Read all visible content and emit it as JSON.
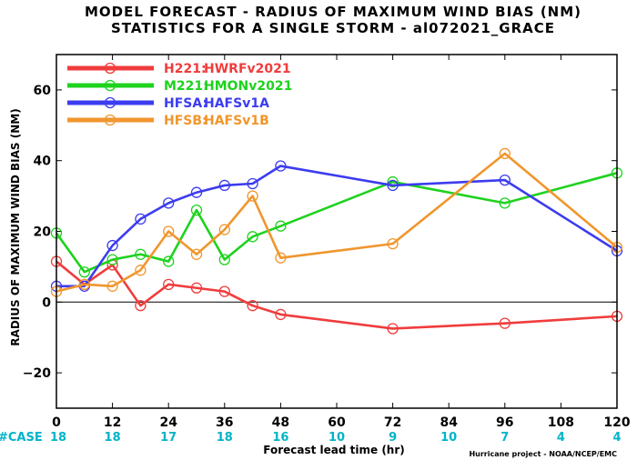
{
  "chart_data": {
    "type": "line",
    "title": "MODEL FORECAST - RADIUS OF MAXIMUM WIND BIAS (NM)",
    "subtitle": "STATISTICS FOR A SINGLE STORM - al072021_GRACE",
    "xlabel": "Forecast lead time (hr)",
    "ylabel": "RADIUS OF MAXIMUM WIND BIAS (NM)",
    "xlim": [
      0,
      120
    ],
    "ylim": [
      -30,
      70
    ],
    "xticks": [
      0,
      12,
      24,
      36,
      48,
      60,
      72,
      84,
      96,
      108,
      120
    ],
    "yticks": [
      -20,
      0,
      20,
      40,
      60
    ],
    "zero_line": true,
    "legend_position": "top-left",
    "case_label": "#CASE",
    "case_x": [
      0,
      12,
      24,
      36,
      48,
      60,
      72,
      84,
      96,
      108,
      120
    ],
    "case_counts": [
      "18",
      "18",
      "17",
      "18",
      "16",
      "10",
      "9",
      "10",
      "7",
      "4",
      "4"
    ],
    "case_color": "#00b4c8",
    "credit": "Hurricane project - NOAA/NCEP/EMC",
    "series": [
      {
        "code": "H221:",
        "name": "HWRFv2021",
        "color": "#f03c3c",
        "x": [
          0,
          6,
          12,
          18,
          24,
          30,
          36,
          42,
          48,
          72,
          96,
          120
        ],
        "values": [
          11.5,
          5,
          10.5,
          -1,
          5,
          4,
          3,
          -1,
          -3.5,
          -7.5,
          -6,
          -4
        ]
      },
      {
        "code": "M221:",
        "name": "HMONv2021",
        "color": "#1ed21e",
        "x": [
          0,
          6,
          12,
          18,
          24,
          30,
          36,
          42,
          48,
          72,
          96,
          120
        ],
        "values": [
          19.5,
          8.5,
          12,
          13.5,
          11.5,
          26,
          12,
          18.5,
          21.5,
          34,
          28,
          36.5
        ]
      },
      {
        "code": "HFSA:",
        "name": "HAFSv1A",
        "color": "#3c3cf0",
        "x": [
          0,
          6,
          12,
          18,
          24,
          30,
          36,
          42,
          48,
          72,
          96,
          120
        ],
        "values": [
          4.5,
          4.5,
          16,
          23.5,
          28,
          31,
          33,
          33.5,
          38.5,
          33,
          34.5,
          14.5
        ]
      },
      {
        "code": "HFSB:",
        "name": "HAFSv1B",
        "color": "#f0962d",
        "x": [
          0,
          6,
          12,
          18,
          24,
          30,
          36,
          42,
          48,
          72,
          96,
          120
        ],
        "values": [
          3,
          5,
          4.5,
          9,
          20,
          13.5,
          20.5,
          30,
          12.5,
          16.5,
          42,
          15.5
        ]
      }
    ]
  }
}
